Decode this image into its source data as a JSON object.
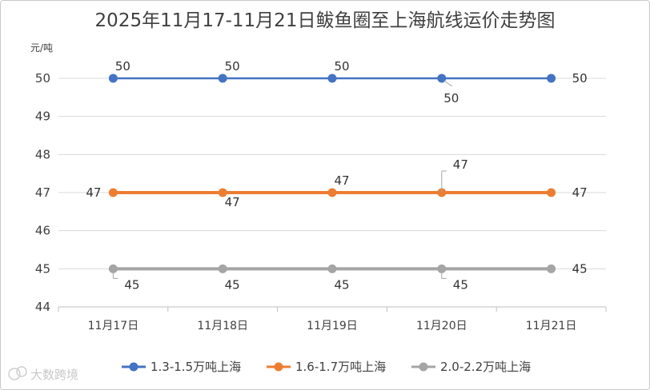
{
  "chart_data": {
    "type": "line",
    "title": "2025年11月17-11月21日鲅鱼圈至上海航线运价走势图",
    "ylabel": "元/吨",
    "xlabel": "",
    "categories": [
      "11月17日",
      "11月18日",
      "11月19日",
      "11月20日",
      "11月21日"
    ],
    "ylim": [
      44,
      50
    ],
    "yticks": [
      44,
      45,
      46,
      47,
      48,
      49,
      50
    ],
    "grid": true,
    "legend_position": "bottom",
    "series": [
      {
        "name": "1.3-1.5万吨上海",
        "color": "#4472c4",
        "values": [
          50,
          50,
          50,
          50,
          50
        ]
      },
      {
        "name": "1.6-1.7万吨上海",
        "color": "#ed7d31",
        "values": [
          47,
          47,
          47,
          47,
          47
        ]
      },
      {
        "name": "2.0-2.2万吨上海",
        "color": "#a5a5a5",
        "values": [
          45,
          45,
          45,
          45,
          45
        ]
      }
    ]
  },
  "watermark": {
    "text": "大数跨境",
    "icon": "chat-bubble-icon"
  }
}
